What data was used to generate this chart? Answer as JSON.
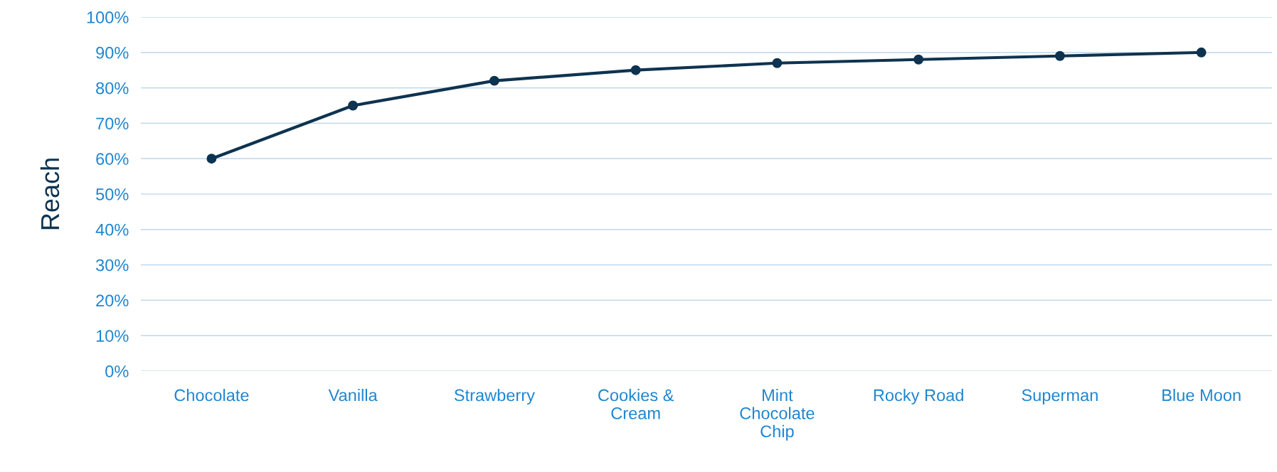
{
  "chart_data": {
    "type": "line",
    "ylabel": "Reach",
    "categories": [
      "Chocolate",
      "Vanilla",
      "Strawberry",
      "Cookies & Cream",
      "Mint Chocolate Chip",
      "Rocky Road",
      "Superman",
      "Blue Moon"
    ],
    "series": [
      {
        "color": "#0e3350",
        "values": [
          60,
          75,
          82,
          85,
          87,
          88,
          89,
          90
        ]
      }
    ],
    "ylim": [
      0,
      100
    ],
    "yticks": [
      {
        "value": 0,
        "label": "0%"
      },
      {
        "value": 10,
        "label": "10%"
      },
      {
        "value": 20,
        "label": "20%"
      },
      {
        "value": 30,
        "label": "30%"
      },
      {
        "value": 40,
        "label": "40%"
      },
      {
        "value": 50,
        "label": "50%"
      },
      {
        "value": 60,
        "label": "60%"
      },
      {
        "value": 70,
        "label": "70%"
      },
      {
        "value": 80,
        "label": "80%"
      },
      {
        "value": 90,
        "label": "90%"
      },
      {
        "value": 100,
        "label": "100%"
      }
    ],
    "grid": "y",
    "marker": "circle",
    "line_style": "solid"
  }
}
